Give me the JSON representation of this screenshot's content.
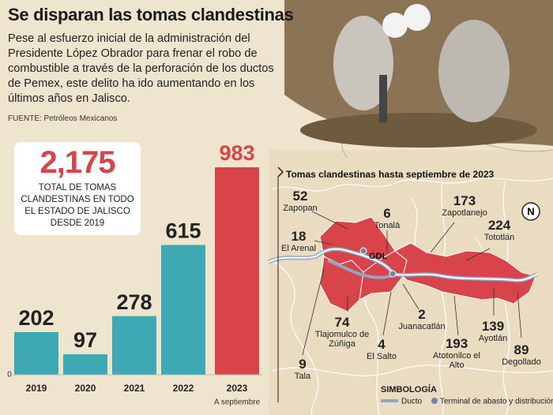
{
  "title": "Se disparan las tomas clandestinas",
  "description": "Pese al esfuerzo inicial de la administración del Presidente López Obrador para frenar el robo de combustible a través de la perforación de los ductos de Pemex, este delito ha ido aumentando en los últimos años en Jalisco.",
  "source": "FUENTE: Petróleos Mexicanos",
  "total": {
    "value": "2,175",
    "label": "TOTAL DE TOMAS CLANDESTINAS EN TODO EL ESTADO DE JALISCO DESDE 2019"
  },
  "chart_data": {
    "type": "bar",
    "categories": [
      "2019",
      "2020",
      "2021",
      "2022",
      "2023"
    ],
    "category_note": "A septiembre",
    "values": [
      202,
      97,
      278,
      615,
      983
    ],
    "colors": [
      "#3ea8b3",
      "#3ea8b3",
      "#3ea8b3",
      "#3ea8b3",
      "#d9434a"
    ],
    "ylim": [
      0,
      1000
    ],
    "yticks": [
      0
    ]
  },
  "map": {
    "title": "Tomas clandestinas hasta septiembre de 2023",
    "city": "GDL",
    "north": "N",
    "municipalities": [
      {
        "name": "Zapopan",
        "value": 52
      },
      {
        "name": "El Arenal",
        "value": 18
      },
      {
        "name": "Tonalá",
        "value": 6
      },
      {
        "name": "Zapotlanejo",
        "value": 173
      },
      {
        "name": "Tototlán",
        "value": 224
      },
      {
        "name": "Tlajomulco de Zúñiga",
        "value": 74
      },
      {
        "name": "Juanacatlán",
        "value": 2
      },
      {
        "name": "El Salto",
        "value": 4
      },
      {
        "name": "Tala",
        "value": 9
      },
      {
        "name": "Atotonilco el Alto",
        "value": 193
      },
      {
        "name": "Ayotlán",
        "value": 139
      },
      {
        "name": "Degollado",
        "value": 89
      }
    ],
    "legend": {
      "title": "SIMBOLOGÍA",
      "items": [
        "Ducto",
        "Terminal de abasto y distribución"
      ]
    }
  }
}
